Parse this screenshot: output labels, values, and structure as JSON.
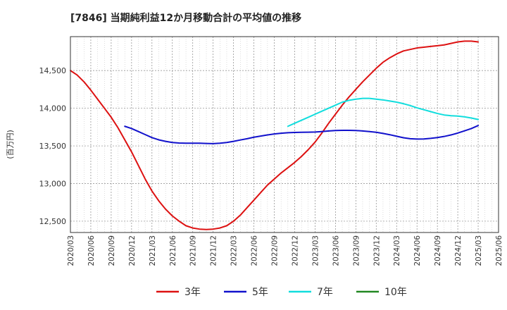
{
  "chart_data": {
    "type": "line",
    "title": "[7846]  当期純利益12か月移動合計の平均値の推移",
    "ylabel": "(百万円)",
    "ylim": [
      12350,
      14950
    ],
    "y_ticks": [
      12500,
      13000,
      13500,
      14000,
      14500
    ],
    "y_tick_labels": [
      "12,500",
      "13,000",
      "13,500",
      "14,000",
      "14,500"
    ],
    "x_tick_labels": [
      "2020/03",
      "2020/06",
      "2020/09",
      "2020/12",
      "2021/03",
      "2021/06",
      "2021/09",
      "2021/12",
      "2022/03",
      "2022/06",
      "2022/09",
      "2022/12",
      "2023/03",
      "2023/06",
      "2023/09",
      "2023/12",
      "2024/03",
      "2024/06",
      "2024/09",
      "2024/12",
      "2025/03",
      "2025/06"
    ],
    "grid": true,
    "legend_position": "bottom",
    "series": [
      {
        "name": "3年",
        "color": "#dd1111",
        "x": [
          "2020/03",
          "2020/04",
          "2020/05",
          "2020/06",
          "2020/07",
          "2020/08",
          "2020/09",
          "2020/10",
          "2020/11",
          "2020/12",
          "2021/01",
          "2021/02",
          "2021/03",
          "2021/04",
          "2021/05",
          "2021/06",
          "2021/07",
          "2021/08",
          "2021/09",
          "2021/10",
          "2021/11",
          "2021/12",
          "2022/01",
          "2022/02",
          "2022/03",
          "2022/04",
          "2022/05",
          "2022/06",
          "2022/07",
          "2022/08",
          "2022/09",
          "2022/10",
          "2022/11",
          "2022/12",
          "2023/01",
          "2023/02",
          "2023/03",
          "2023/04",
          "2023/05",
          "2023/06",
          "2023/07",
          "2023/08",
          "2023/09",
          "2023/10",
          "2023/11",
          "2023/12",
          "2024/01",
          "2024/02",
          "2024/03",
          "2024/04",
          "2024/05",
          "2024/06",
          "2024/07",
          "2024/08",
          "2024/09",
          "2024/10",
          "2024/11",
          "2024/12",
          "2025/01",
          "2025/02",
          "2025/03"
        ],
        "values": [
          14500,
          14440,
          14350,
          14240,
          14120,
          14000,
          13880,
          13740,
          13580,
          13420,
          13240,
          13060,
          12900,
          12770,
          12660,
          12570,
          12500,
          12440,
          12410,
          12395,
          12390,
          12395,
          12410,
          12440,
          12500,
          12580,
          12680,
          12780,
          12880,
          12980,
          13060,
          13140,
          13210,
          13280,
          13360,
          13450,
          13550,
          13670,
          13800,
          13920,
          14040,
          14150,
          14250,
          14350,
          14440,
          14530,
          14610,
          14670,
          14720,
          14760,
          14780,
          14800,
          14810,
          14820,
          14830,
          14840,
          14860,
          14880,
          14890,
          14890,
          14880
        ]
      },
      {
        "name": "5年",
        "color": "#1111cc",
        "x": [
          "2020/11",
          "2020/12",
          "2021/01",
          "2021/02",
          "2021/03",
          "2021/04",
          "2021/05",
          "2021/06",
          "2021/07",
          "2021/08",
          "2021/09",
          "2021/10",
          "2021/11",
          "2021/12",
          "2022/01",
          "2022/02",
          "2022/03",
          "2022/04",
          "2022/05",
          "2022/06",
          "2022/07",
          "2022/08",
          "2022/09",
          "2022/10",
          "2022/11",
          "2022/12",
          "2023/01",
          "2023/02",
          "2023/03",
          "2023/04",
          "2023/05",
          "2023/06",
          "2023/07",
          "2023/08",
          "2023/09",
          "2023/10",
          "2023/11",
          "2023/12",
          "2024/01",
          "2024/02",
          "2024/03",
          "2024/04",
          "2024/05",
          "2024/06",
          "2024/07",
          "2024/08",
          "2024/09",
          "2024/10",
          "2024/11",
          "2024/12",
          "2025/01",
          "2025/02",
          "2025/03"
        ],
        "values": [
          13760,
          13730,
          13690,
          13650,
          13610,
          13580,
          13560,
          13545,
          13538,
          13535,
          13535,
          13535,
          13532,
          13530,
          13535,
          13545,
          13560,
          13578,
          13595,
          13615,
          13630,
          13645,
          13658,
          13668,
          13674,
          13678,
          13680,
          13682,
          13684,
          13690,
          13698,
          13704,
          13706,
          13706,
          13704,
          13698,
          13690,
          13680,
          13665,
          13648,
          13628,
          13608,
          13595,
          13590,
          13592,
          13600,
          13610,
          13625,
          13645,
          13670,
          13700,
          13730,
          13770
        ]
      },
      {
        "name": "7年",
        "color": "#11dddd",
        "x": [
          "2022/11",
          "2022/12",
          "2023/01",
          "2023/02",
          "2023/03",
          "2023/04",
          "2023/05",
          "2023/06",
          "2023/07",
          "2023/08",
          "2023/09",
          "2023/10",
          "2023/11",
          "2023/12",
          "2024/01",
          "2024/02",
          "2024/03",
          "2024/04",
          "2024/05",
          "2024/06",
          "2024/07",
          "2024/08",
          "2024/09",
          "2024/10",
          "2024/11",
          "2024/12",
          "2025/01",
          "2025/02",
          "2025/03"
        ],
        "values": [
          13760,
          13800,
          13840,
          13880,
          13920,
          13960,
          14000,
          14040,
          14080,
          14105,
          14120,
          14130,
          14130,
          14120,
          14110,
          14095,
          14080,
          14060,
          14035,
          14005,
          13980,
          13955,
          13930,
          13910,
          13900,
          13895,
          13885,
          13870,
          13850
        ]
      },
      {
        "name": "10年",
        "color": "#228822",
        "x": [],
        "values": []
      }
    ]
  }
}
